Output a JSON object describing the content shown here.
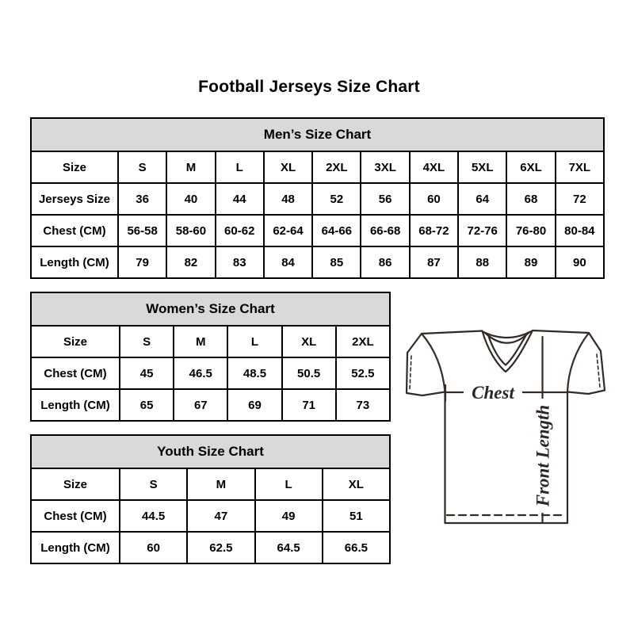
{
  "page": {
    "title": "Football Jerseys Size Chart"
  },
  "tables": {
    "mens": {
      "title": "Men’s Size Chart",
      "rows": [
        {
          "label": "Size",
          "values": [
            "S",
            "M",
            "L",
            "XL",
            "2XL",
            "3XL",
            "4XL",
            "5XL",
            "6XL",
            "7XL"
          ]
        },
        {
          "label": "Jerseys Size",
          "values": [
            "36",
            "40",
            "44",
            "48",
            "52",
            "56",
            "60",
            "64",
            "68",
            "72"
          ]
        },
        {
          "label": "Chest (CM)",
          "values": [
            "56-58",
            "58-60",
            "60-62",
            "62-64",
            "64-66",
            "66-68",
            "68-72",
            "72-76",
            "76-80",
            "80-84"
          ]
        },
        {
          "label": "Length (CM)",
          "values": [
            "79",
            "82",
            "83",
            "84",
            "85",
            "86",
            "87",
            "88",
            "89",
            "90"
          ]
        }
      ]
    },
    "womens": {
      "title": "Women’s Size Chart",
      "rows": [
        {
          "label": "Size",
          "values": [
            "S",
            "M",
            "L",
            "XL",
            "2XL"
          ]
        },
        {
          "label": "Chest (CM)",
          "values": [
            "45",
            "46.5",
            "48.5",
            "50.5",
            "52.5"
          ]
        },
        {
          "label": "Length (CM)",
          "values": [
            "65",
            "67",
            "69",
            "71",
            "73"
          ]
        }
      ]
    },
    "youth": {
      "title": "Youth Size Chart",
      "rows": [
        {
          "label": "Size",
          "values": [
            "S",
            "M",
            "L",
            "XL"
          ]
        },
        {
          "label": "Chest (CM)",
          "values": [
            "44.5",
            "47",
            "49",
            "51"
          ]
        },
        {
          "label": "Length (CM)",
          "values": [
            "60",
            "62.5",
            "64.5",
            "66.5"
          ]
        }
      ]
    }
  },
  "diagram": {
    "chest_label": "Chest",
    "front_length_label": "Front Length"
  },
  "colors": {
    "header_bg": "#d9d9d9",
    "table_border": "#000000",
    "diagram_line": "#342b27"
  }
}
